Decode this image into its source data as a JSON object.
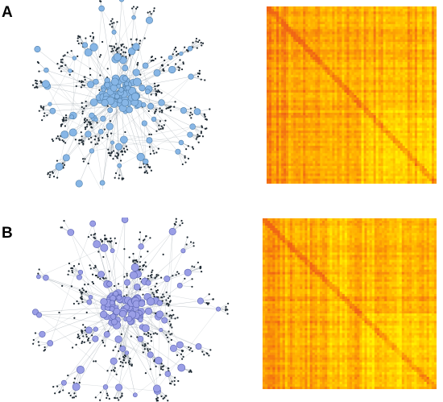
{
  "panels": [
    {
      "label": "A",
      "node_color": "#87b6e6",
      "node_stroke": "#4f7ea8"
    },
    {
      "label": "B",
      "node_color": "#9a9ee6",
      "node_stroke": "#5a63b0"
    }
  ],
  "colors": {
    "edge": "#8f9aa3",
    "leaf_node": "#1f2a33",
    "heat_low": "#fff200",
    "heat_mid": "#ffaf00",
    "heat_high": "#f06414"
  }
}
